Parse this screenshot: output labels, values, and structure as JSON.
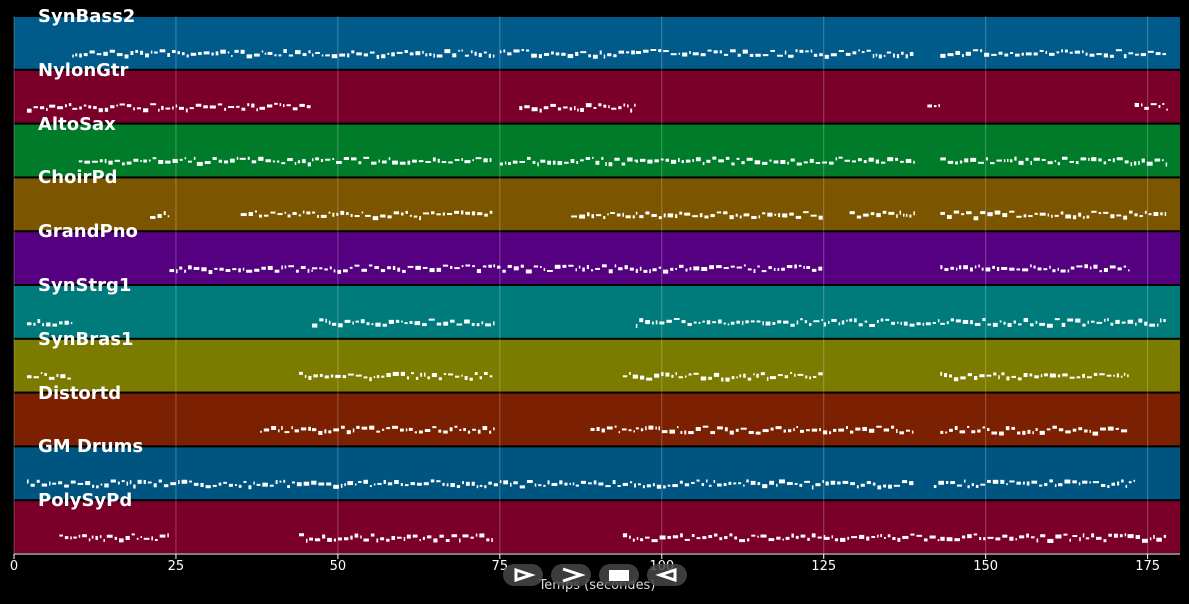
{
  "app": {
    "xlabel": "Temps (secondes)"
  },
  "tracks": [
    {
      "name": "SynBass2",
      "color": "#005b8b"
    },
    {
      "name": "NylonGtr",
      "color": "#7b0029"
    },
    {
      "name": "AltoSax",
      "color": "#007b29"
    },
    {
      "name": "ChoirPd",
      "color": "#7b5500"
    },
    {
      "name": "GrandPno",
      "color": "#550080"
    },
    {
      "name": "SynStrg1",
      "color": "#007b7b"
    },
    {
      "name": "SynBras1",
      "color": "#7b7b00"
    },
    {
      "name": "Distortd",
      "color": "#7b2000"
    },
    {
      "name": "GM Drums",
      "color": "#005580"
    },
    {
      "name": "PolySyPd",
      "color": "#7b0029"
    }
  ],
  "x_axis": {
    "range": [
      0,
      180
    ],
    "ticks": [
      {
        "value": 0,
        "label": "0"
      },
      {
        "value": 25,
        "label": "25"
      },
      {
        "value": 50,
        "label": "50"
      },
      {
        "value": 75,
        "label": "75"
      },
      {
        "value": 100,
        "label": "100"
      },
      {
        "value": 125,
        "label": "125"
      },
      {
        "value": 150,
        "label": "150"
      },
      {
        "value": 175,
        "label": "175"
      }
    ]
  },
  "playback_controls": [
    {
      "name": "play-icon"
    },
    {
      "name": "forward-icon"
    },
    {
      "name": "stop-icon"
    },
    {
      "name": "rewind-icon"
    }
  ],
  "note_segments": [
    [
      [
        9,
        46
      ],
      [
        46,
        74
      ],
      [
        75,
        96
      ],
      [
        96,
        139
      ],
      [
        143,
        178
      ]
    ],
    [
      [
        2,
        9
      ],
      [
        9,
        46
      ],
      [
        78,
        96
      ],
      [
        141,
        143
      ],
      [
        173,
        178
      ]
    ],
    [
      [
        10,
        46
      ],
      [
        46,
        74
      ],
      [
        75,
        96
      ],
      [
        96,
        139
      ],
      [
        143,
        178
      ]
    ],
    [
      [
        21,
        24
      ],
      [
        35,
        46
      ],
      [
        46,
        74
      ],
      [
        86,
        96
      ],
      [
        96,
        125
      ],
      [
        129,
        139
      ],
      [
        143,
        178
      ]
    ],
    [
      [
        24,
        46
      ],
      [
        46,
        74
      ],
      [
        74,
        96
      ],
      [
        96,
        125
      ],
      [
        143,
        172
      ]
    ],
    [
      [
        2,
        9
      ],
      [
        46,
        74
      ],
      [
        96,
        125
      ],
      [
        125,
        143
      ],
      [
        143,
        178
      ]
    ],
    [
      [
        2,
        9
      ],
      [
        44,
        74
      ],
      [
        94,
        125
      ],
      [
        143,
        172
      ]
    ],
    [
      [
        38,
        46
      ],
      [
        46,
        74
      ],
      [
        89,
        96
      ],
      [
        96,
        139
      ],
      [
        143,
        172
      ]
    ],
    [
      [
        2,
        139
      ],
      [
        142,
        173
      ]
    ],
    [
      [
        7,
        24
      ],
      [
        44,
        74
      ],
      [
        94,
        125
      ],
      [
        125,
        143
      ],
      [
        143,
        178
      ]
    ]
  ]
}
